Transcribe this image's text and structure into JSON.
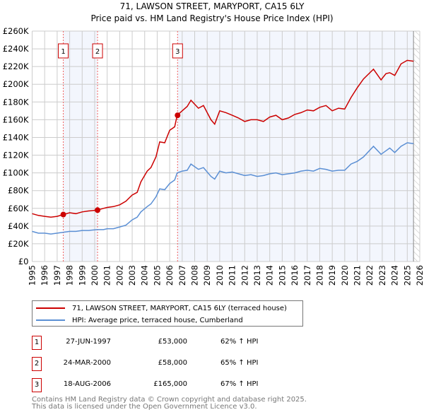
{
  "title_line1": "71, LAWSON STREET, MARYPORT, CA15 6LY",
  "title_line2": "Price paid vs. HM Land Registry's House Price Index (HPI)",
  "colors": {
    "property": "#cc0000",
    "hpi": "#5b8fd4",
    "shade": "#f3f6fd",
    "grid": "#cccccc"
  },
  "chart_data": {
    "type": "line",
    "title": "71, LAWSON STREET, MARYPORT, CA15 6LY — Price paid vs. HM Land Registry's House Price Index (HPI)",
    "xlabel": "",
    "ylabel": "",
    "xlim": [
      1995,
      2026
    ],
    "ylim": [
      0,
      260000
    ],
    "x_ticks": [
      "1995",
      "1996",
      "1997",
      "1998",
      "1999",
      "2000",
      "2001",
      "2002",
      "2003",
      "2004",
      "2005",
      "2006",
      "2007",
      "2008",
      "2009",
      "2010",
      "2011",
      "2012",
      "2013",
      "2014",
      "2015",
      "2016",
      "2017",
      "2018",
      "2019",
      "2020",
      "2021",
      "2022",
      "2023",
      "2024",
      "2025",
      "2026"
    ],
    "y_ticks": [
      {
        "v": 0,
        "label": "£0"
      },
      {
        "v": 20000,
        "label": "£20K"
      },
      {
        "v": 40000,
        "label": "£40K"
      },
      {
        "v": 60000,
        "label": "£60K"
      },
      {
        "v": 80000,
        "label": "£80K"
      },
      {
        "v": 100000,
        "label": "£100K"
      },
      {
        "v": 120000,
        "label": "£120K"
      },
      {
        "v": 140000,
        "label": "£140K"
      },
      {
        "v": 160000,
        "label": "£160K"
      },
      {
        "v": 180000,
        "label": "£180K"
      },
      {
        "v": 200000,
        "label": "£200K"
      },
      {
        "v": 220000,
        "label": "£220K"
      },
      {
        "v": 240000,
        "label": "£240K"
      },
      {
        "v": 260000,
        "label": "£260K"
      }
    ],
    "grid": true,
    "series": [
      {
        "name": "71, LAWSON STREET, MARYPORT, CA15 6LY (terraced house)",
        "color": "#cc0000",
        "x": [
          1995,
          1995.5,
          1996,
          1996.5,
          1997,
          1997.5,
          1998,
          1998.5,
          1999,
          1999.5,
          2000.2,
          2000.7,
          2001,
          2001.5,
          2002,
          2002.5,
          2003,
          2003.4,
          2003.7,
          2004.2,
          2004.5,
          2004.9,
          2005.2,
          2005.6,
          2006,
          2006.4,
          2006.6,
          2007,
          2007.4,
          2007.7,
          2008.3,
          2008.7,
          2009.3,
          2009.6,
          2010,
          2010.5,
          2011,
          2011.5,
          2012,
          2012.5,
          2013,
          2013.5,
          2014,
          2014.5,
          2015,
          2015.5,
          2016,
          2016.5,
          2017,
          2017.5,
          2018,
          2018.5,
          2019,
          2019.5,
          2020,
          2020.5,
          2021,
          2021.5,
          2022.3,
          2022.9,
          2023.3,
          2023.6,
          2024,
          2024.5,
          2025,
          2025.5
        ],
        "y": [
          54000,
          52000,
          51000,
          50000,
          51000,
          53000,
          55000,
          54000,
          56000,
          57000,
          58000,
          60000,
          61000,
          62000,
          64000,
          68000,
          75000,
          78000,
          90000,
          102000,
          106000,
          118000,
          135000,
          134000,
          148000,
          152000,
          165000,
          170000,
          175000,
          182000,
          173000,
          176000,
          160000,
          155000,
          170000,
          168000,
          165000,
          162000,
          158000,
          160000,
          160000,
          158000,
          163000,
          165000,
          160000,
          162000,
          166000,
          168000,
          171000,
          170000,
          174000,
          176000,
          170000,
          173000,
          172000,
          185000,
          196000,
          206000,
          217000,
          205000,
          212000,
          213000,
          210000,
          223000,
          227000,
          226000
        ]
      },
      {
        "name": "HPI: Average price, terraced house, Cumberland",
        "color": "#5b8fd4",
        "x": [
          1995,
          1995.5,
          1996,
          1996.5,
          1997,
          1997.5,
          1998,
          1998.5,
          1999,
          1999.5,
          2000.2,
          2000.7,
          2001,
          2001.5,
          2002,
          2002.5,
          2003,
          2003.4,
          2003.7,
          2004.2,
          2004.5,
          2004.9,
          2005.2,
          2005.6,
          2006,
          2006.4,
          2006.6,
          2007,
          2007.4,
          2007.7,
          2008.3,
          2008.7,
          2009.3,
          2009.6,
          2010,
          2010.5,
          2011,
          2011.5,
          2012,
          2012.5,
          2013,
          2013.5,
          2014,
          2014.5,
          2015,
          2015.5,
          2016,
          2016.5,
          2017,
          2017.5,
          2018,
          2018.5,
          2019,
          2019.5,
          2020,
          2020.5,
          2021,
          2021.5,
          2022.3,
          2022.9,
          2023.3,
          2023.6,
          2024,
          2024.5,
          2025,
          2025.5
        ],
        "y": [
          34000,
          32000,
          32000,
          31000,
          32000,
          33000,
          34000,
          34000,
          35000,
          35000,
          36000,
          36000,
          37000,
          37000,
          39000,
          41000,
          47000,
          50000,
          56000,
          62000,
          65000,
          73000,
          82000,
          81000,
          88000,
          92000,
          100000,
          102000,
          103000,
          110000,
          104000,
          106000,
          96000,
          93000,
          102000,
          100000,
          101000,
          99000,
          97000,
          98000,
          96000,
          97000,
          99000,
          100000,
          98000,
          99000,
          100000,
          102000,
          103000,
          102000,
          105000,
          104000,
          102000,
          103000,
          103000,
          110000,
          113000,
          118000,
          130000,
          121000,
          125000,
          128000,
          123000,
          130000,
          134000,
          133000
        ]
      }
    ],
    "sales": [
      {
        "label": "1",
        "x": 1997.49,
        "y": 53000,
        "date": "27-JUN-1997",
        "price": "£53,000",
        "hpi": "62% ↑ HPI"
      },
      {
        "label": "2",
        "x": 2000.23,
        "y": 58000,
        "date": "24-MAR-2000",
        "price": "£58,000",
        "hpi": "65% ↑ HPI"
      },
      {
        "label": "3",
        "x": 2006.63,
        "y": 165000,
        "date": "18-AUG-2006",
        "price": "£165,000",
        "hpi": "67% ↑ HPI"
      }
    ],
    "shaded_ranges": [
      [
        1997.49,
        2000.23
      ],
      [
        2006.63,
        2025.5
      ]
    ],
    "hatched_from": 2025.5,
    "legend_position": "below"
  },
  "legend": {
    "property": "71, LAWSON STREET, MARYPORT, CA15 6LY (terraced house)",
    "hpi": "HPI: Average price, terraced house, Cumberland"
  },
  "footer": {
    "line1": "Contains HM Land Registry data © Crown copyright and database right 2025.",
    "line2": "This data is licensed under the Open Government Licence v3.0."
  }
}
